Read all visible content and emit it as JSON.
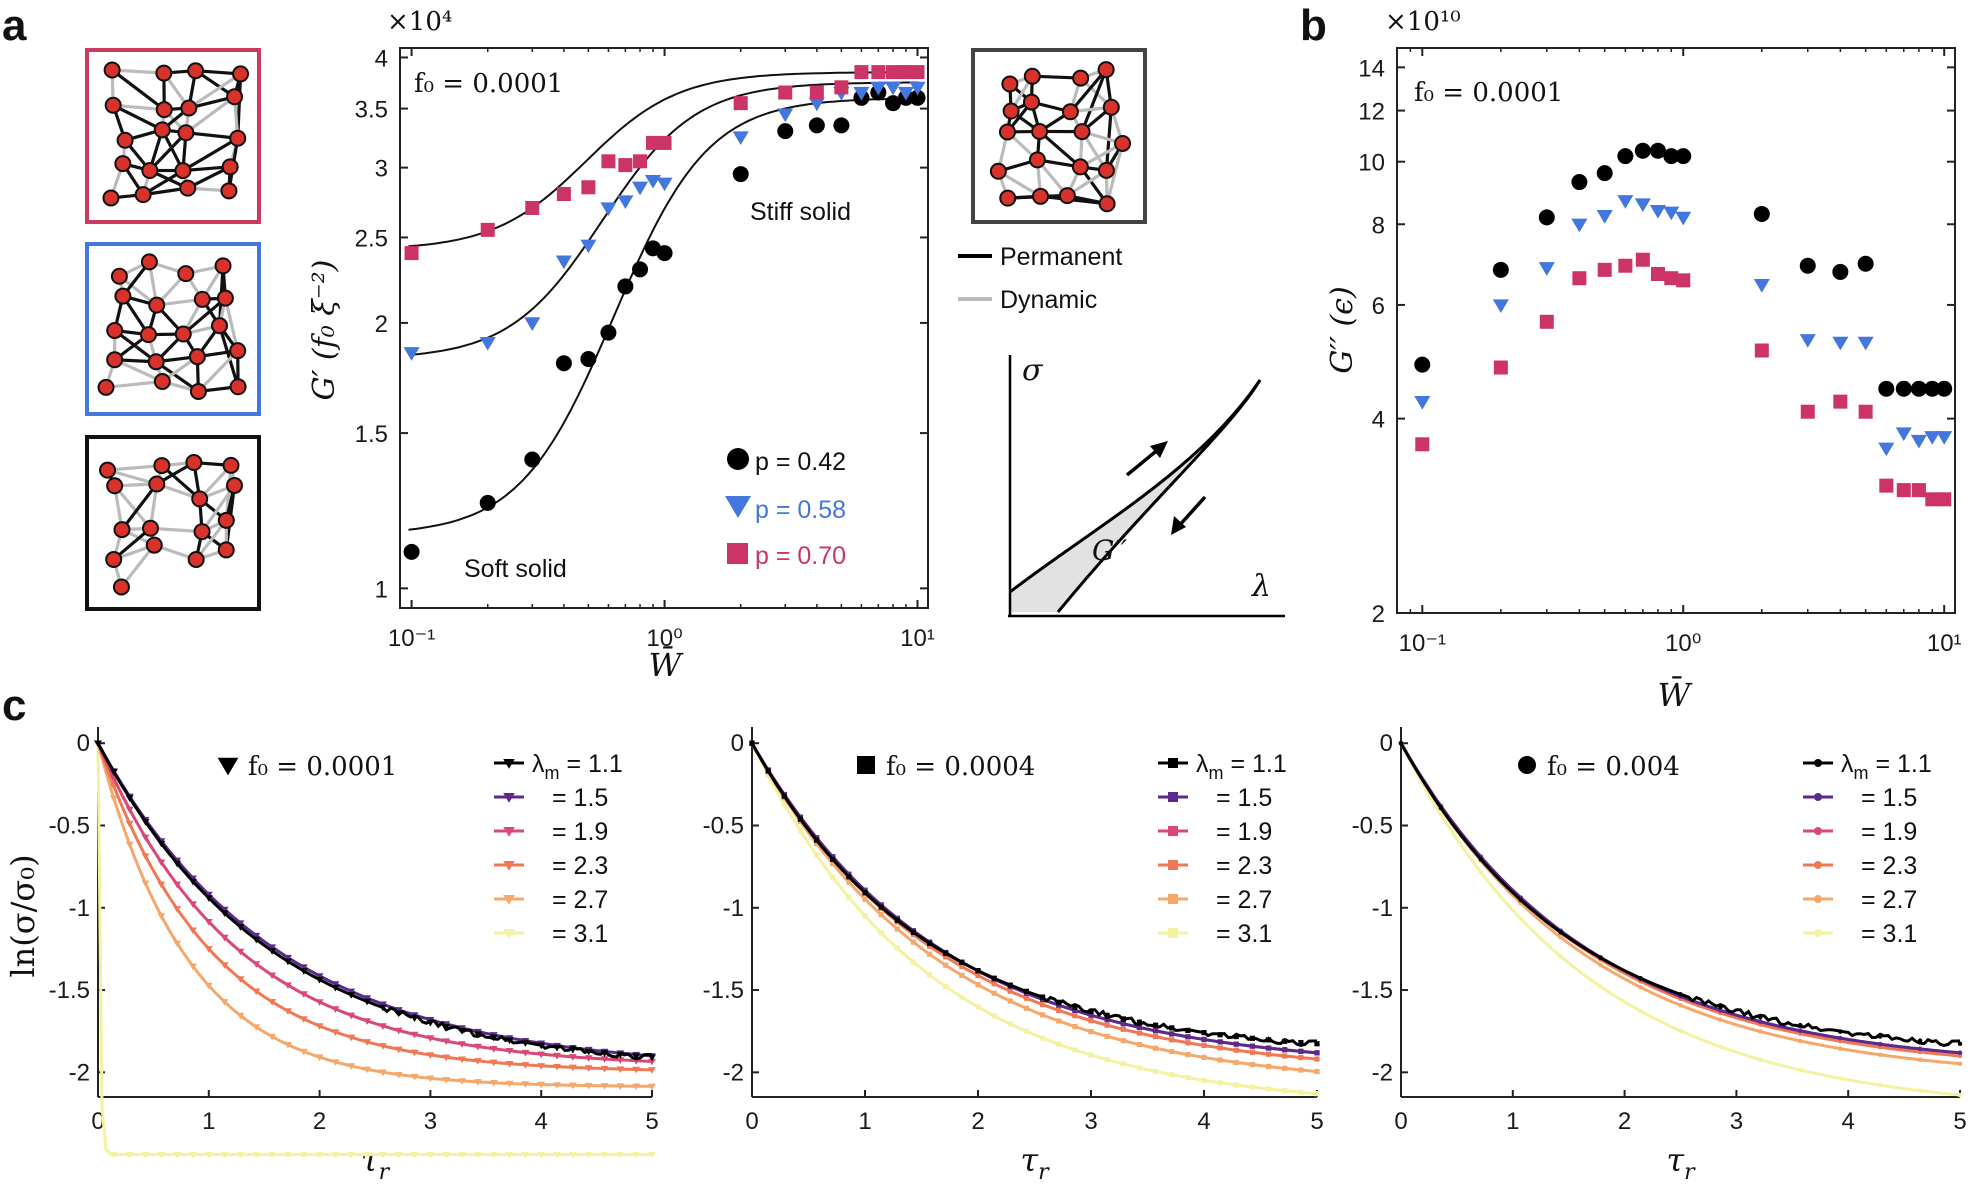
{
  "panel_labels": {
    "a": "a",
    "b": "b",
    "c": "c"
  },
  "networks": {
    "legend": {
      "permanent": "Permanent",
      "dynamic": "Dynamic"
    }
  },
  "inset": {
    "y_label": "σ",
    "x_label": "λ",
    "area_label": "G′′"
  },
  "chart_data": [
    {
      "id": "a",
      "type": "scatter",
      "title": "",
      "annotation": "f₀ = 0.0001",
      "scale_label": "×10⁴",
      "xlabel": "W̄",
      "ylabel": "G′ (f₀ ξ⁻²)",
      "xscale": "log",
      "yscale": "log",
      "xlim": [
        0.09,
        11
      ],
      "ylim": [
        0.95,
        4.1
      ],
      "xticks": [
        0.1,
        1,
        10
      ],
      "xtick_labels": [
        "10⁻¹",
        "10⁰",
        "10¹"
      ],
      "yticks": [
        1,
        1.5,
        2,
        2.5,
        3,
        3.5,
        4
      ],
      "ytick_labels": [
        "1",
        "1.5",
        "2",
        "2.5",
        "3",
        "3.5",
        "4"
      ],
      "text_labels": {
        "soft": "Soft solid",
        "stiff": "Stiff solid"
      },
      "legend_position": "bottom-right",
      "series": [
        {
          "name": "p = 0.42",
          "marker": "circle",
          "color": "#000000",
          "x": [
            0.1,
            0.2,
            0.3,
            0.4,
            0.5,
            0.6,
            0.7,
            0.8,
            0.9,
            1.0,
            2,
            3,
            4,
            5,
            6,
            7,
            8,
            9,
            10
          ],
          "y": [
            1.1,
            1.25,
            1.4,
            1.8,
            1.82,
            1.95,
            2.2,
            2.3,
            2.43,
            2.4,
            2.95,
            3.3,
            3.35,
            3.35,
            3.6,
            3.65,
            3.55,
            3.6,
            3.6
          ]
        },
        {
          "name": "p = 0.58",
          "marker": "triangle-down",
          "color": "#4477dd",
          "x": [
            0.1,
            0.2,
            0.3,
            0.4,
            0.5,
            0.6,
            0.7,
            0.8,
            0.9,
            1.0,
            2,
            3,
            4,
            5,
            6,
            7,
            8,
            9,
            10
          ],
          "y": [
            1.85,
            1.9,
            2.0,
            2.35,
            2.45,
            2.7,
            2.75,
            2.85,
            2.9,
            2.88,
            3.25,
            3.45,
            3.55,
            3.65,
            3.65,
            3.7,
            3.7,
            3.65,
            3.7
          ]
        },
        {
          "name": "p = 0.70",
          "marker": "square",
          "color": "#cc3366",
          "x": [
            0.1,
            0.2,
            0.3,
            0.4,
            0.5,
            0.6,
            0.7,
            0.8,
            0.9,
            1.0,
            2,
            3,
            4,
            5,
            6,
            7,
            8,
            9,
            10
          ],
          "y": [
            2.4,
            2.55,
            2.7,
            2.8,
            2.85,
            3.05,
            3.02,
            3.05,
            3.2,
            3.2,
            3.55,
            3.65,
            3.65,
            3.7,
            3.85,
            3.85,
            3.85,
            3.85,
            3.85
          ]
        }
      ],
      "fit_lines": [
        {
          "name": "fit p = 0.42",
          "low": 1.15,
          "high": 3.6,
          "center": 0.8,
          "slope": 2.4
        },
        {
          "name": "fit p = 0.58",
          "low": 1.82,
          "high": 3.75,
          "center": 0.66,
          "slope": 2.4
        },
        {
          "name": "fit p = 0.70",
          "low": 2.42,
          "high": 3.85,
          "center": 0.54,
          "slope": 2.4
        }
      ]
    },
    {
      "id": "b",
      "type": "scatter",
      "title": "",
      "annotation": "f₀ = 0.0001",
      "scale_label": "×10¹⁰",
      "xlabel": "W̄",
      "ylabel": "G′′ (ϵ)",
      "xscale": "log",
      "yscale": "log",
      "xlim": [
        0.08,
        11
      ],
      "ylim": [
        2,
        15
      ],
      "xticks": [
        0.1,
        1,
        10
      ],
      "xtick_labels": [
        "10⁻¹",
        "10⁰",
        "10¹"
      ],
      "yticks": [
        2,
        4,
        6,
        8,
        10,
        12,
        14
      ],
      "ytick_labels": [
        "2",
        "4",
        "6",
        "8",
        "10",
        "12",
        "14"
      ],
      "series": [
        {
          "name": "p = 0.42",
          "marker": "circle",
          "color": "#000000",
          "x": [
            0.1,
            0.2,
            0.3,
            0.4,
            0.5,
            0.6,
            0.7,
            0.8,
            0.9,
            1.0,
            2,
            3,
            4,
            5,
            6,
            7,
            8,
            9,
            10
          ],
          "y": [
            4.85,
            6.8,
            8.2,
            9.3,
            9.6,
            10.2,
            10.4,
            10.4,
            10.2,
            10.2,
            8.3,
            6.9,
            6.75,
            6.95,
            4.45,
            4.45,
            4.45,
            4.45,
            4.45
          ]
        },
        {
          "name": "p = 0.58",
          "marker": "triangle-down",
          "color": "#4477dd",
          "x": [
            0.1,
            0.2,
            0.3,
            0.4,
            0.5,
            0.6,
            0.7,
            0.8,
            0.9,
            1.0,
            2,
            3,
            4,
            5,
            6,
            7,
            8,
            9,
            10
          ],
          "y": [
            4.25,
            6.0,
            6.85,
            8.0,
            8.25,
            8.7,
            8.6,
            8.4,
            8.35,
            8.2,
            6.45,
            5.3,
            5.25,
            5.25,
            3.6,
            3.8,
            3.7,
            3.75,
            3.75
          ]
        },
        {
          "name": "p = 0.70",
          "marker": "square",
          "color": "#cc3366",
          "x": [
            0.1,
            0.2,
            0.3,
            0.4,
            0.5,
            0.6,
            0.7,
            0.8,
            0.9,
            1.0,
            2,
            3,
            4,
            5,
            6,
            7,
            8,
            9,
            10
          ],
          "y": [
            3.65,
            4.8,
            5.65,
            6.6,
            6.8,
            6.9,
            7.05,
            6.7,
            6.6,
            6.55,
            5.1,
            4.1,
            4.25,
            4.1,
            3.15,
            3.1,
            3.1,
            3.0,
            3.0
          ]
        }
      ]
    },
    {
      "id": "c1",
      "type": "line",
      "annotation": "f₀ = 0.0001",
      "annotation_marker": "triangle-down",
      "marker": "triangle-down",
      "xlabel": "τ_r",
      "ylabel": "ln(σ/σ₀)",
      "xlim": [
        0,
        5
      ],
      "ylim": [
        -2.15,
        0.05
      ],
      "xticks": [
        0,
        1,
        2,
        3,
        4,
        5
      ],
      "xtick_labels": [
        "0",
        "1",
        "2",
        "3",
        "4",
        "5"
      ],
      "yticks": [
        0,
        -0.5,
        -1,
        -1.5,
        -2
      ],
      "ytick_labels": [
        "0",
        "-0.5",
        "-1",
        "-1.5",
        "-2"
      ],
      "legend_position": "top-right",
      "series": [
        {
          "name": "λm = 1.1",
          "label_lead": "λ",
          "label_sub": "m",
          "label_value": " = 1.1",
          "color": "#000000",
          "A": 1.99,
          "k": 0.64,
          "noise": true
        },
        {
          "name": "λm = 1.5",
          "label_value": "= 1.5",
          "color": "#5b2a8c",
          "A": 1.99,
          "k": 0.62,
          "noise": false
        },
        {
          "name": "λm = 1.9",
          "label_value": "= 1.9",
          "color": "#d94877",
          "A": 1.97,
          "k": 0.8,
          "noise": false
        },
        {
          "name": "λm = 2.3",
          "label_value": "= 2.3",
          "color": "#f07855",
          "A": 2.0,
          "k": 0.98,
          "noise": false
        },
        {
          "name": "λm = 2.7",
          "label_value": "= 2.7",
          "color": "#f5a86b",
          "A": 2.09,
          "k": 1.22,
          "noise": false
        },
        {
          "name": "λm = 3.1",
          "label_value": "= 3.1",
          "color": "#f4f1a0",
          "A": 2.5,
          "k": 60,
          "noise": false
        }
      ]
    },
    {
      "id": "c2",
      "type": "line",
      "annotation": "f₀ = 0.0004",
      "annotation_marker": "square",
      "marker": "square",
      "xlabel": "τ_r",
      "ylabel": "",
      "xlim": [
        0,
        5
      ],
      "ylim": [
        -2.15,
        0.05
      ],
      "xticks": [
        0,
        1,
        2,
        3,
        4,
        5
      ],
      "xtick_labels": [
        "0",
        "1",
        "2",
        "3",
        "4",
        "5"
      ],
      "yticks": [
        0,
        -0.5,
        -1,
        -1.5,
        -2
      ],
      "ytick_labels": [
        "0",
        "-0.5",
        "-1",
        "-1.5",
        "-2"
      ],
      "legend_position": "top-right",
      "series": [
        {
          "name": "λm = 1.1",
          "label_lead": "λ",
          "label_sub": "m",
          "label_value": " = 1.1",
          "color": "#000000",
          "A": 1.9,
          "k": 0.65,
          "noise": true
        },
        {
          "name": "λm = 1.5",
          "label_value": "= 1.5",
          "color": "#5b2a8c",
          "A": 1.98,
          "k": 0.6,
          "noise": false
        },
        {
          "name": "λm = 1.9",
          "label_value": "= 1.9",
          "color": "#d94877",
          "A": 1.98,
          "k": 0.6,
          "noise": false
        },
        {
          "name": "λm = 2.3",
          "label_value": "= 2.3",
          "color": "#f07855",
          "A": 2.02,
          "k": 0.6,
          "noise": false
        },
        {
          "name": "λm = 2.7",
          "label_value": "= 2.7",
          "color": "#f5a86b",
          "A": 2.1,
          "k": 0.6,
          "noise": false
        },
        {
          "name": "λm = 3.1",
          "label_value": "= 3.1",
          "color": "#f4f1a0",
          "A": 2.22,
          "k": 0.64,
          "noise": false
        }
      ]
    },
    {
      "id": "c3",
      "type": "line",
      "annotation": "f₀ = 0.004",
      "annotation_marker": "circle",
      "marker": "dot",
      "xlabel": "τ_r",
      "ylabel": "",
      "xlim": [
        0,
        5
      ],
      "ylim": [
        -2.15,
        0.05
      ],
      "xticks": [
        0,
        1,
        2,
        3,
        4,
        5
      ],
      "xtick_labels": [
        "0",
        "1",
        "2",
        "3",
        "4",
        "5"
      ],
      "yticks": [
        0,
        -0.5,
        -1,
        -1.5,
        -2
      ],
      "ytick_labels": [
        "0",
        "-0.5",
        "-1",
        "-1.5",
        "-2"
      ],
      "legend_position": "top-right",
      "series": [
        {
          "name": "λm = 1.1",
          "label_lead": "λ",
          "label_sub": "m",
          "label_value": " = 1.1",
          "color": "#000000",
          "A": 1.9,
          "k": 0.65,
          "noise": true
        },
        {
          "name": "λm = 1.5",
          "label_value": "= 1.5",
          "color": "#5b2a8c",
          "A": 1.98,
          "k": 0.6,
          "noise": false
        },
        {
          "name": "λm = 1.9",
          "label_value": "= 1.9",
          "color": "#d94877",
          "A": 1.98,
          "k": 0.6,
          "noise": false
        },
        {
          "name": "λm = 2.3",
          "label_value": "= 2.3",
          "color": "#f07855",
          "A": 2.0,
          "k": 0.6,
          "noise": false
        },
        {
          "name": "λm = 2.7",
          "label_value": "= 2.7",
          "color": "#f5a86b",
          "A": 2.05,
          "k": 0.6,
          "noise": false
        },
        {
          "name": "λm = 3.1",
          "label_value": "= 3.1",
          "color": "#f4f1a0",
          "A": 2.25,
          "k": 0.6,
          "noise": false
        }
      ]
    }
  ]
}
